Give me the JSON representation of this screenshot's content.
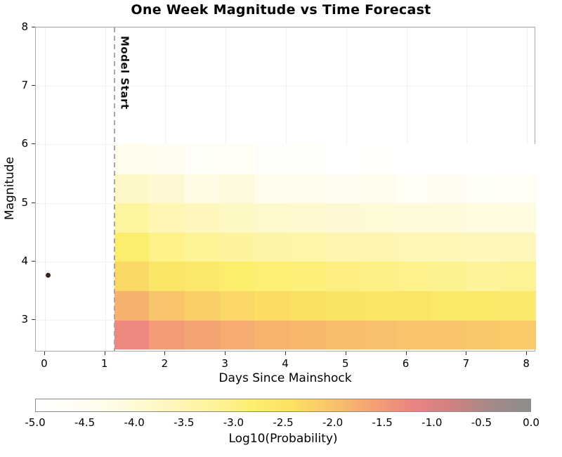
{
  "chart_data": {
    "type": "heatmap",
    "title": "One Week Magnitude vs Time Forecast",
    "xlabel": "Days Since Mainshock",
    "ylabel": "Magnitude",
    "xlim": [
      -0.15,
      8.15
    ],
    "ylim": [
      2.45,
      8.0
    ],
    "x_ticks": [
      0,
      1,
      2,
      3,
      4,
      5,
      6,
      7,
      8
    ],
    "y_ticks": [
      3,
      4,
      5,
      6,
      7,
      8
    ],
    "grid": true,
    "time_edges": [
      1.15,
      1.73,
      2.32,
      2.9,
      3.48,
      4.07,
      4.65,
      5.23,
      5.82,
      6.4,
      6.98,
      7.57,
      8.15
    ],
    "mag_edges": [
      2.5,
      3.0,
      3.5,
      4.0,
      4.5,
      5.0,
      5.5,
      6.0
    ],
    "values_note": "log10 probability per cell; rows bottom (M2.5-3.0) to top (M5.5-6.0)",
    "values": [
      [
        -1.25,
        -1.5,
        -1.63,
        -1.72,
        -1.8,
        -1.86,
        -1.91,
        -1.96,
        -2.0,
        -2.03,
        -2.07,
        -2.1
      ],
      [
        -1.78,
        -2.02,
        -2.16,
        -2.26,
        -2.33,
        -2.39,
        -2.45,
        -2.49,
        -2.53,
        -2.57,
        -2.6,
        -2.63
      ],
      [
        -2.28,
        -2.52,
        -2.66,
        -2.77,
        -2.85,
        -2.9,
        -2.96,
        -3.0,
        -3.05,
        -3.08,
        -3.18,
        -3.14
      ],
      [
        -2.78,
        -3.02,
        -3.16,
        -3.27,
        -3.35,
        -3.4,
        -3.46,
        -3.5,
        -3.55,
        -3.58,
        -3.62,
        -3.64
      ],
      [
        -3.28,
        -3.52,
        -3.66,
        -3.77,
        -3.85,
        -3.9,
        -3.96,
        -4.0,
        -4.05,
        -4.08,
        -4.12,
        -4.14
      ],
      [
        -3.82,
        -3.95,
        -4.2,
        -4.1,
        -4.35,
        -4.3,
        -4.55,
        -4.4,
        -4.6,
        -4.5,
        -4.68,
        -4.6
      ],
      [
        -4.3,
        -4.45,
        -4.7,
        -4.6,
        -4.85,
        -4.75,
        -5.0,
        -4.9,
        -5.0,
        -4.95,
        -5.0,
        -5.0
      ]
    ],
    "annotations": {
      "model_start": {
        "x": 1.15,
        "label": "Model Start",
        "line_color": "#a6a6a6",
        "line_style": "dashed"
      },
      "mainshock": {
        "x": 0.05,
        "magnitude": 3.77,
        "marker_color": "#35251c"
      }
    },
    "colorbar": {
      "label": "Log10(Probability)",
      "min": -5.0,
      "max": 0.0,
      "ticks": [
        -5.0,
        -4.5,
        -4.0,
        -3.5,
        -3.0,
        -2.5,
        -2.0,
        -1.5,
        -1.0,
        -0.5,
        0.0
      ],
      "orientation": "horizontal",
      "position": "bottom"
    },
    "colormap": [
      {
        "v": -5.0,
        "c": "#ffffff"
      },
      {
        "v": -4.3,
        "c": "#fffceb"
      },
      {
        "v": -3.7,
        "c": "#fef7c0"
      },
      {
        "v": -3.1,
        "c": "#fdf292"
      },
      {
        "v": -2.8,
        "c": "#fcee6e"
      },
      {
        "v": -2.4,
        "c": "#fbe164"
      },
      {
        "v": -2.0,
        "c": "#f9c36a"
      },
      {
        "v": -1.6,
        "c": "#f4a272"
      },
      {
        "v": -1.2,
        "c": "#ec8482"
      },
      {
        "v": -0.8,
        "c": "#cf8181"
      },
      {
        "v": -0.4,
        "c": "#a48a88"
      },
      {
        "v": 0.0,
        "c": "#8c8c8c"
      }
    ]
  }
}
